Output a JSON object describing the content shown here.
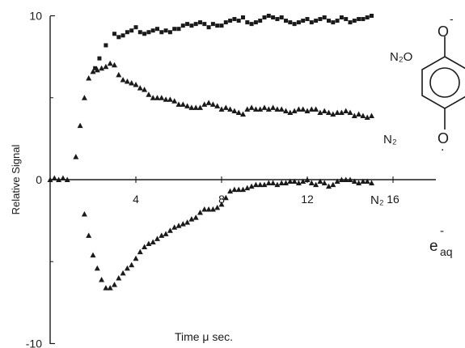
{
  "chart_data": {
    "type": "scatter",
    "xlabel": "Time μ sec.",
    "ylabel": "Relative  Signal",
    "xlim": [
      0,
      18
    ],
    "ylim": [
      -10,
      10
    ],
    "x_ticks": [
      4,
      8,
      12,
      16
    ],
    "x_tick_labels": [
      "4",
      "8",
      "12",
      "16"
    ],
    "y_ticks": [
      -10,
      0,
      10
    ],
    "y_tick_labels": [
      "-10",
      "0",
      "10"
    ],
    "grid": false,
    "legend": "none",
    "series": [
      {
        "name": "N₂O",
        "marker": "square",
        "color": "#1a1a1a",
        "x": [
          2.1,
          2.3,
          2.6,
          3.0,
          3.2,
          3.4,
          3.6,
          3.8,
          4.0,
          4.2,
          4.4,
          4.6,
          4.8,
          5.0,
          5.2,
          5.4,
          5.6,
          5.8,
          6.0,
          6.2,
          6.4,
          6.6,
          6.8,
          7.0,
          7.2,
          7.4,
          7.6,
          7.8,
          8.0,
          8.2,
          8.4,
          8.6,
          8.8,
          9.0,
          9.2,
          9.4,
          9.6,
          9.8,
          10.0,
          10.2,
          10.4,
          10.6,
          10.8,
          11.0,
          11.2,
          11.4,
          11.6,
          11.8,
          12.0,
          12.2,
          12.4,
          12.6,
          12.8,
          13.0,
          13.2,
          13.4,
          13.6,
          13.8,
          14.0,
          14.2,
          14.4,
          14.6,
          14.8,
          15.0
        ],
        "y": [
          6.8,
          7.4,
          8.2,
          8.9,
          8.7,
          8.8,
          9.0,
          9.1,
          9.3,
          9.0,
          8.9,
          9.0,
          9.1,
          9.2,
          9.0,
          9.1,
          9.0,
          9.2,
          9.2,
          9.4,
          9.5,
          9.4,
          9.5,
          9.6,
          9.5,
          9.3,
          9.5,
          9.4,
          9.4,
          9.6,
          9.7,
          9.8,
          9.7,
          9.9,
          9.6,
          9.5,
          9.6,
          9.7,
          9.9,
          10.0,
          9.9,
          9.8,
          9.9,
          9.7,
          9.6,
          9.5,
          9.6,
          9.7,
          9.8,
          9.6,
          9.7,
          9.8,
          9.9,
          9.7,
          9.6,
          9.7,
          9.9,
          9.8,
          9.6,
          9.7,
          9.8,
          9.8,
          9.9,
          10.0
        ]
      },
      {
        "name": "N₂",
        "marker": "triangle",
        "color": "#1a1a1a",
        "x": [
          0.0,
          0.2,
          0.4,
          0.6,
          0.8,
          1.2,
          1.4,
          1.6,
          1.8,
          2.0,
          2.2,
          2.4,
          2.6,
          2.8,
          3.0,
          3.2,
          3.4,
          3.6,
          3.8,
          4.0,
          4.2,
          4.4,
          4.6,
          4.8,
          5.0,
          5.2,
          5.4,
          5.6,
          5.8,
          6.0,
          6.2,
          6.4,
          6.6,
          6.8,
          7.0,
          7.2,
          7.4,
          7.6,
          7.8,
          8.0,
          8.2,
          8.4,
          8.6,
          8.8,
          9.0,
          9.2,
          9.4,
          9.6,
          9.8,
          10.0,
          10.2,
          10.4,
          10.6,
          10.8,
          11.0,
          11.2,
          11.4,
          11.6,
          11.8,
          12.0,
          12.2,
          12.4,
          12.6,
          12.8,
          13.0,
          13.2,
          13.4,
          13.6,
          13.8,
          14.0,
          14.2,
          14.4,
          14.6,
          14.8,
          15.0
        ],
        "y": [
          0.0,
          0.1,
          0.0,
          0.1,
          0.0,
          1.4,
          3.3,
          5.0,
          6.2,
          6.6,
          6.7,
          6.8,
          6.9,
          7.1,
          7.0,
          6.4,
          6.1,
          6.0,
          5.9,
          5.8,
          5.6,
          5.5,
          5.2,
          5.0,
          5.0,
          5.0,
          4.9,
          4.9,
          4.8,
          4.6,
          4.6,
          4.5,
          4.4,
          4.4,
          4.4,
          4.6,
          4.7,
          4.6,
          4.5,
          4.3,
          4.4,
          4.3,
          4.2,
          4.1,
          4.0,
          4.3,
          4.4,
          4.3,
          4.3,
          4.4,
          4.3,
          4.4,
          4.3,
          4.3,
          4.2,
          4.1,
          4.2,
          4.3,
          4.3,
          4.2,
          4.3,
          4.3,
          4.1,
          4.2,
          4.1,
          4.0,
          4.1,
          4.1,
          4.2,
          4.1,
          3.9,
          4.0,
          3.9,
          3.8,
          3.9
        ]
      },
      {
        "name": "N₂ e⁻ aq",
        "marker": "triangle",
        "color": "#1a1a1a",
        "x": [
          1.6,
          1.8,
          2.0,
          2.2,
          2.4,
          2.6,
          2.8,
          3.0,
          3.2,
          3.4,
          3.6,
          3.8,
          4.0,
          4.2,
          4.4,
          4.6,
          4.8,
          5.0,
          5.2,
          5.4,
          5.6,
          5.8,
          6.0,
          6.2,
          6.4,
          6.6,
          6.8,
          7.0,
          7.2,
          7.4,
          7.6,
          7.8,
          8.0,
          8.2,
          8.4,
          8.6,
          8.8,
          9.0,
          9.2,
          9.4,
          9.6,
          9.8,
          10.0,
          10.2,
          10.4,
          10.6,
          10.8,
          11.0,
          11.2,
          11.4,
          11.6,
          11.8,
          12.0,
          12.2,
          12.4,
          12.6,
          12.8,
          13.0,
          13.2,
          13.4,
          13.6,
          13.8,
          14.0,
          14.2,
          14.4,
          14.6,
          14.8,
          15.0
        ],
        "y": [
          -2.1,
          -3.4,
          -4.6,
          -5.4,
          -6.1,
          -6.6,
          -6.6,
          -6.4,
          -6.0,
          -5.7,
          -5.4,
          -5.2,
          -4.8,
          -4.4,
          -4.1,
          -3.9,
          -3.8,
          -3.6,
          -3.4,
          -3.3,
          -3.1,
          -2.9,
          -2.8,
          -2.7,
          -2.6,
          -2.4,
          -2.3,
          -2.0,
          -1.8,
          -1.8,
          -1.8,
          -1.7,
          -1.5,
          -1.1,
          -0.7,
          -0.6,
          -0.6,
          -0.6,
          -0.5,
          -0.4,
          -0.3,
          -0.3,
          -0.3,
          -0.2,
          -0.2,
          -0.3,
          -0.2,
          -0.2,
          -0.1,
          -0.1,
          -0.2,
          -0.1,
          0.0,
          -0.2,
          -0.3,
          -0.1,
          -0.2,
          -0.4,
          -0.3,
          -0.1,
          0.0,
          0.0,
          0.0,
          -0.1,
          -0.2,
          -0.1,
          -0.1,
          -0.2
        ]
      }
    ],
    "annotations": {
      "n2o_label": "N₂O",
      "n2_label": "N₂",
      "n2_lower_label": "N₂",
      "eaq_base": "e",
      "eaq_sub": "aq",
      "eaq_sup": "-"
    },
    "structure_labels": {
      "top_charge": "-",
      "bottom_charge": "."
    }
  }
}
